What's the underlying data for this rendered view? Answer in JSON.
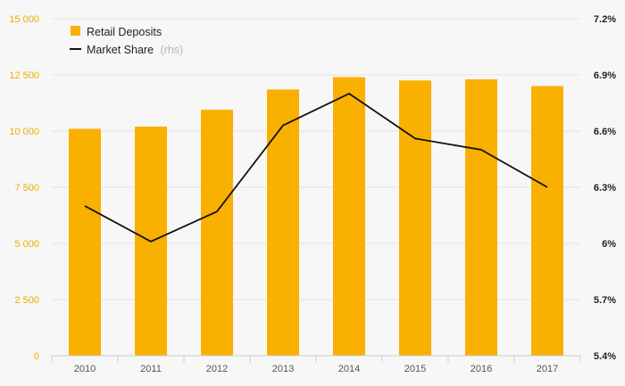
{
  "chart_data": {
    "type": "bar",
    "categories": [
      "2010",
      "2011",
      "2012",
      "2013",
      "2014",
      "2015",
      "2016",
      "2017"
    ],
    "series": [
      {
        "name": "Retail Deposits",
        "type": "bar",
        "axis": "left",
        "color": "#f9b000",
        "values": [
          10100,
          10200,
          10950,
          11850,
          12400,
          12250,
          12300,
          12000
        ]
      },
      {
        "name": "Market Share",
        "name_suffix": "(rhs)",
        "type": "line",
        "axis": "right",
        "color": "#111111",
        "values": [
          6.2,
          6.01,
          6.17,
          6.63,
          6.8,
          6.56,
          6.5,
          6.3
        ]
      }
    ],
    "y_left": {
      "ylim": [
        0,
        15000
      ],
      "ticks": [
        0,
        2500,
        5000,
        7500,
        10000,
        12500,
        15000
      ],
      "tick_labels": [
        "0",
        "2 500",
        "5 000",
        "7 500",
        "10 000",
        "12 500",
        "15 000"
      ]
    },
    "y_right": {
      "ylim": [
        5.4,
        7.2
      ],
      "ticks": [
        5.4,
        5.7,
        6.0,
        6.3,
        6.6,
        6.9,
        7.2
      ],
      "tick_labels": [
        "5.4%",
        "5.7%",
        "6%",
        "6.3%",
        "6.6%",
        "6.9%",
        "7.2%"
      ]
    },
    "grid": true,
    "legend": "top-left",
    "title": "",
    "xlabel": "",
    "ylabel": ""
  }
}
